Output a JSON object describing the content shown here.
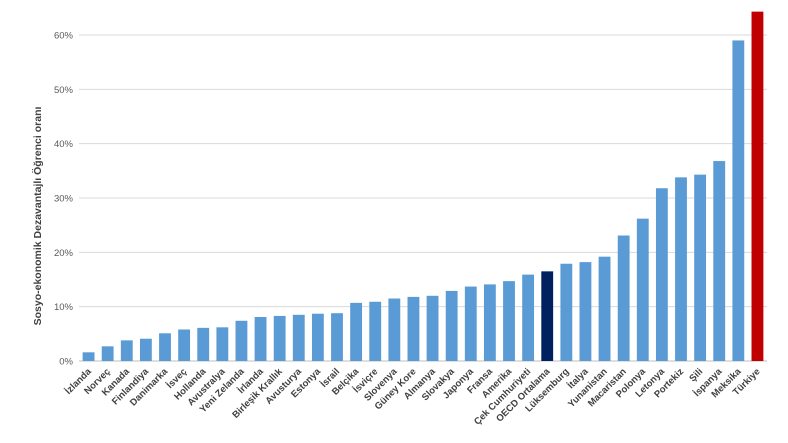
{
  "chart_data": {
    "type": "bar",
    "title": "",
    "xlabel": "",
    "ylabel": "Sosyo-ekonomik Dezavantajlı Öğrenci oranı",
    "ylim": [
      0,
      60
    ],
    "ytick_labels": [
      "0%",
      "10%",
      "20%",
      "30%",
      "40%",
      "50%",
      "60%"
    ],
    "grid": "horizontal",
    "legend": "none",
    "categories": [
      "İzlanda",
      "Norveç",
      "Kanada",
      "Finlandiya",
      "Danimarka",
      "İsveç",
      "Hollanda",
      "Avustralya",
      "Yeni Zelanda",
      "İrlanda",
      "Birleşik Krallık",
      "Avusturya",
      "Estonya",
      "İsrail",
      "Belçika",
      "İsviçre",
      "Slovenya",
      "Güney Kore",
      "Almanya",
      "Slovakya",
      "Japonya",
      "Fransa",
      "Amerika",
      "Çek Cumhuriyeti",
      "OECD Ortalama",
      "Lüksemburg",
      "İtalya",
      "Yunanistan",
      "Macaristan",
      "Polonya",
      "Letonya",
      "Portekiz",
      "Şili",
      "İspanya",
      "Meksika",
      "Türkiye"
    ],
    "values": [
      1.6,
      2.7,
      3.8,
      4.1,
      5.1,
      5.8,
      6.1,
      6.2,
      7.4,
      8.1,
      8.3,
      8.5,
      8.7,
      8.8,
      10.7,
      10.9,
      11.5,
      11.8,
      12.0,
      12.9,
      13.7,
      14.1,
      14.7,
      15.9,
      16.5,
      17.9,
      18.2,
      19.2,
      23.1,
      26.2,
      31.8,
      33.8,
      34.3,
      36.8,
      59.0,
      64.3
    ],
    "colors": {
      "default": "#5b9bd5",
      "highlight_average": "#002060",
      "highlight_turkey": "#c00000"
    },
    "highlights": {
      "OECD Ortalama": "highlight_average",
      "Türkiye": "highlight_turkey"
    }
  }
}
